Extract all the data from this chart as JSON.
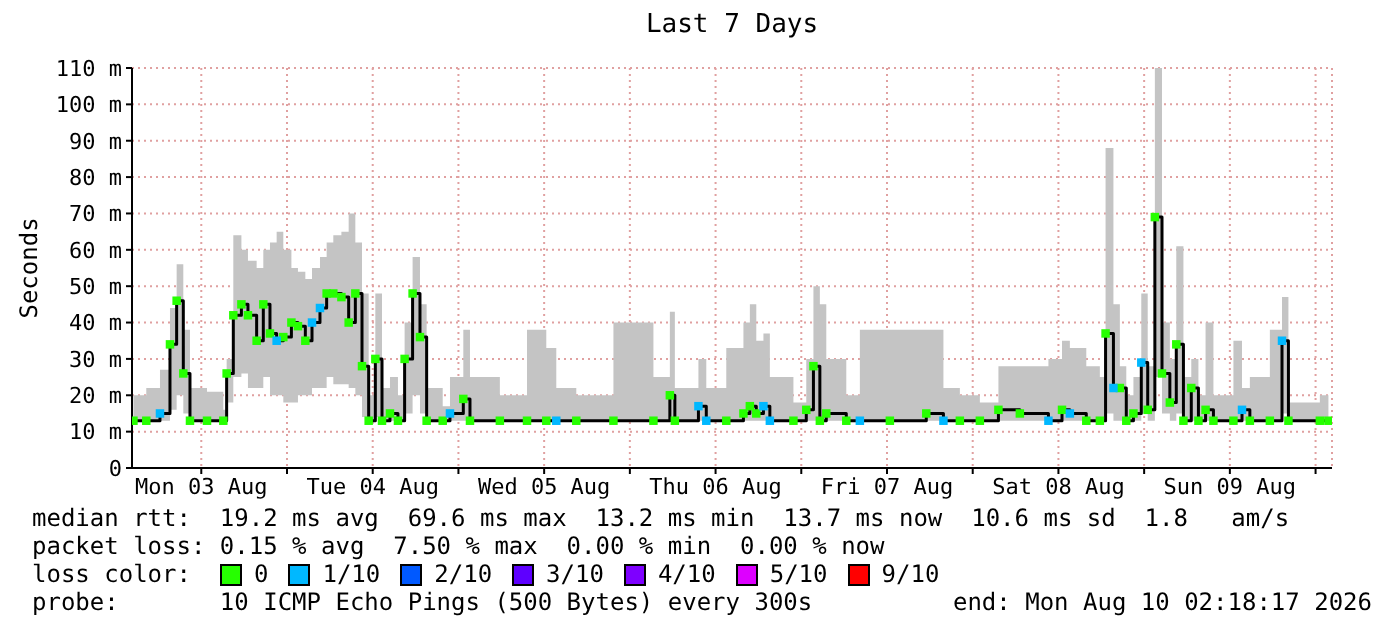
{
  "chart_data": {
    "type": "step",
    "title": "Last 7 Days",
    "ylabel": "Seconds",
    "legend_title": "loss color:",
    "legend": "bottom",
    "grid": true,
    "xlim": [
      "2026-08-03T02:18",
      "2026-08-10T02:18"
    ],
    "xticks": [
      {
        "value": "2026-08-03T12:00",
        "label": "Mon 03 Aug"
      },
      {
        "value": "2026-08-04",
        "label": null
      },
      {
        "value": "2026-08-04T12:00",
        "label": "Tue 04 Aug"
      },
      {
        "value": "2026-08-05",
        "label": null
      },
      {
        "value": "2026-08-05T12:00",
        "label": "Wed 05 Aug"
      },
      {
        "value": "2026-08-06",
        "label": null
      },
      {
        "value": "2026-08-06T12:00",
        "label": "Thu 06 Aug"
      },
      {
        "value": "2026-08-07",
        "label": null
      },
      {
        "value": "2026-08-07T12:00",
        "label": "Fri 07 Aug"
      },
      {
        "value": "2026-08-08",
        "label": null
      },
      {
        "value": "2026-08-08T12:00",
        "label": "Sat 08 Aug"
      },
      {
        "value": "2026-08-09",
        "label": null
      },
      {
        "value": "2026-08-09T12:00",
        "label": "Sun 09 Aug"
      },
      {
        "value": "2026-08-10",
        "label": null
      }
    ],
    "ylim": [
      0,
      110
    ],
    "yticks": [
      0,
      {
        "value": 10,
        "label": "10 m"
      },
      {
        "value": 20,
        "label": "20 m"
      },
      {
        "value": 30,
        "label": "30 m"
      },
      {
        "value": 40,
        "label": "40 m"
      },
      {
        "value": 50,
        "label": "50 m"
      },
      {
        "value": 60,
        "label": "60 m"
      },
      {
        "value": 70,
        "label": "70 m"
      },
      {
        "value": 80,
        "label": "80 m"
      },
      {
        "value": 90,
        "label": "90 m"
      },
      {
        "value": 100,
        "label": "100 m"
      },
      {
        "value": 110,
        "label": "110 m"
      }
    ],
    "x": [
      "2026-08-03T02:30",
      "2026-08-03T04:18",
      "2026-08-03T06:13",
      "2026-08-03T07:37",
      "2026-08-03T08:33",
      "2026-08-03T09:29",
      "2026-08-03T10:25",
      "2026-08-03T12:48",
      "2026-08-03T15:05",
      "2026-08-03T15:33",
      "2026-08-03T16:29",
      "2026-08-03T17:37",
      "2026-08-03T18:32",
      "2026-08-03T19:45",
      "2026-08-03T20:41",
      "2026-08-03T21:37",
      "2026-08-03T22:33",
      "2026-08-03T23:29",
      "2026-08-04T00:37",
      "2026-08-04T01:32",
      "2026-08-04T02:34",
      "2026-08-04T03:30",
      "2026-08-04T04:37",
      "2026-08-04T05:33",
      "2026-08-04T06:29",
      "2026-08-04T07:37",
      "2026-08-04T08:38",
      "2026-08-04T09:34",
      "2026-08-04T10:30",
      "2026-08-04T11:26",
      "2026-08-04T12:22",
      "2026-08-04T13:18",
      "2026-08-04T14:25",
      "2026-08-04T15:32",
      "2026-08-04T16:28",
      "2026-08-04T17:35",
      "2026-08-04T18:37",
      "2026-08-04T19:33",
      "2026-08-04T21:48",
      "2026-08-04T22:49",
      "2026-08-05T00:41",
      "2026-08-05T01:37",
      "2026-08-05T05:48",
      "2026-08-05T09:36",
      "2026-08-05T12:18",
      "2026-08-05T13:42",
      "2026-08-05T16:30",
      "2026-08-05T21:42",
      "2026-08-06T03:18",
      "2026-08-06T05:36",
      "2026-08-06T06:18",
      "2026-08-06T09:36",
      "2026-08-06T10:42",
      "2026-08-06T13:30",
      "2026-08-06T15:54",
      "2026-08-06T16:48",
      "2026-08-06T17:42",
      "2026-08-06T18:42",
      "2026-08-06T19:36",
      "2026-08-06T22:54",
      "2026-08-07T00:42",
      "2026-08-07T01:42",
      "2026-08-07T02:36",
      "2026-08-07T03:30",
      "2026-08-07T06:18",
      "2026-08-07T08:12",
      "2026-08-07T12:24",
      "2026-08-07T17:30",
      "2026-08-07T19:54",
      "2026-08-07T22:12",
      "2026-08-08T01:00",
      "2026-08-08T03:36",
      "2026-08-08T06:36",
      "2026-08-08T10:36",
      "2026-08-08T12:30",
      "2026-08-08T13:36",
      "2026-08-08T15:54",
      "2026-08-08T17:48",
      "2026-08-08T18:36",
      "2026-08-08T19:42",
      "2026-08-08T20:36",
      "2026-08-08T21:30",
      "2026-08-08T22:30",
      "2026-08-08T23:36",
      "2026-08-09T00:30",
      "2026-08-09T01:30",
      "2026-08-09T02:30",
      "2026-08-09T03:36",
      "2026-08-09T04:30",
      "2026-08-09T05:30",
      "2026-08-09T06:36",
      "2026-08-09T07:36",
      "2026-08-09T08:36",
      "2026-08-09T09:42",
      "2026-08-09T12:30",
      "2026-08-09T13:42",
      "2026-08-09T14:48",
      "2026-08-09T17:36",
      "2026-08-09T19:18",
      "2026-08-09T20:12",
      "2026-08-10T00:36",
      "2026-08-10T01:48"
    ],
    "series": [
      {
        "color": "#000000",
        "values": [
          13,
          13,
          15,
          34,
          46,
          26,
          13,
          13,
          13,
          26,
          42,
          45,
          42,
          35,
          45,
          37,
          35,
          36,
          40,
          39,
          35,
          40,
          44,
          48,
          48,
          47,
          40,
          48,
          28,
          13,
          30,
          13,
          15,
          13,
          30,
          48,
          36,
          13,
          13,
          15,
          19,
          13,
          13,
          13,
          13,
          13,
          13,
          13,
          13,
          20,
          13,
          17,
          13,
          13,
          15,
          17,
          15,
          17,
          13,
          13,
          16,
          28,
          13,
          15,
          13,
          13,
          13,
          15,
          13,
          13,
          13,
          16,
          15,
          13,
          16,
          15,
          13,
          13,
          37,
          22,
          22,
          13,
          15,
          29,
          16,
          69,
          26,
          18,
          34,
          13,
          22,
          13,
          16,
          13,
          13,
          16,
          13,
          13,
          35,
          13,
          13,
          13
        ],
        "lower": [
          13,
          13,
          13,
          16,
          20,
          15,
          13,
          13,
          13,
          18,
          25,
          26,
          22,
          22,
          25,
          20,
          20,
          18,
          18,
          20,
          20,
          22,
          22,
          25,
          23,
          23,
          22,
          20,
          14,
          13,
          14,
          13,
          13,
          13,
          15,
          20,
          15,
          13,
          13,
          13,
          13,
          13,
          13,
          13,
          13,
          13,
          13,
          13,
          13,
          13,
          13,
          13,
          13,
          13,
          13,
          13,
          13,
          13,
          13,
          13,
          13,
          13,
          13,
          13,
          13,
          13,
          13,
          13,
          13,
          13,
          13,
          13,
          13,
          13,
          13,
          13,
          13,
          13,
          15,
          13,
          13,
          13,
          13,
          15,
          13,
          25,
          15,
          13,
          15,
          13,
          13,
          13,
          13,
          13,
          13,
          13,
          13,
          13,
          15,
          13,
          13,
          13
        ],
        "upper": [
          20,
          22,
          27,
          44,
          56,
          38,
          22,
          21,
          16,
          30,
          64,
          60,
          57,
          55,
          60,
          62,
          65,
          60,
          55,
          54,
          52,
          55,
          58,
          62,
          64,
          65,
          70,
          62,
          48,
          20,
          48,
          22,
          25,
          20,
          40,
          58,
          45,
          22,
          17,
          25,
          38,
          25,
          20,
          38,
          33,
          22,
          20,
          40,
          25,
          43,
          22,
          30,
          22,
          33,
          40,
          45,
          35,
          37,
          25,
          18,
          30,
          50,
          45,
          30,
          20,
          38,
          38,
          38,
          22,
          20,
          18,
          28,
          28,
          30,
          35,
          33,
          28,
          25,
          88,
          45,
          28,
          20,
          25,
          48,
          28,
          110,
          40,
          30,
          61,
          25,
          30,
          20,
          40,
          20,
          35,
          22,
          25,
          38,
          47,
          18,
          20,
          16
        ]
      },
      {
        "type": "scatter",
        "marker": "square",
        "name": "0",
        "color": "#26ff00",
        "values": [
          13,
          13,
          null,
          34,
          46,
          26,
          13,
          13,
          13,
          26,
          42,
          45,
          42,
          35,
          45,
          37,
          null,
          36,
          40,
          39,
          35,
          null,
          null,
          48,
          48,
          47,
          40,
          48,
          28,
          13,
          30,
          13,
          15,
          13,
          30,
          48,
          36,
          13,
          13,
          null,
          19,
          13,
          13,
          13,
          13,
          null,
          13,
          13,
          13,
          20,
          13,
          null,
          null,
          13,
          15,
          17,
          15,
          null,
          null,
          13,
          16,
          28,
          13,
          15,
          13,
          null,
          13,
          15,
          null,
          13,
          13,
          16,
          15,
          null,
          16,
          null,
          13,
          13,
          37,
          null,
          22,
          13,
          15,
          null,
          16,
          69,
          26,
          18,
          34,
          13,
          22,
          13,
          16,
          13,
          13,
          null,
          13,
          13,
          null,
          13,
          13,
          13
        ]
      },
      {
        "type": "scatter",
        "marker": "square",
        "name": "1/10",
        "color": "#00b8ff",
        "values": [
          null,
          null,
          15,
          null,
          null,
          null,
          null,
          null,
          null,
          null,
          null,
          null,
          null,
          null,
          null,
          null,
          35,
          null,
          null,
          null,
          null,
          40,
          44,
          null,
          null,
          null,
          null,
          null,
          null,
          null,
          null,
          null,
          null,
          null,
          null,
          null,
          null,
          null,
          null,
          15,
          null,
          null,
          null,
          null,
          null,
          13,
          null,
          null,
          null,
          null,
          null,
          17,
          13,
          null,
          null,
          null,
          null,
          17,
          13,
          null,
          null,
          null,
          null,
          null,
          null,
          13,
          null,
          null,
          13,
          null,
          null,
          null,
          null,
          13,
          null,
          15,
          null,
          null,
          null,
          22,
          null,
          null,
          null,
          29,
          null,
          null,
          null,
          null,
          null,
          null,
          null,
          null,
          null,
          null,
          null,
          16,
          null,
          null,
          35,
          null,
          null,
          null
        ]
      },
      {
        "type": "scatter",
        "marker": "square",
        "name": "2/10",
        "color": "#0059ff",
        "values": [
          null,
          null,
          null,
          null,
          null,
          null,
          null,
          null,
          null,
          null,
          null,
          null,
          null,
          null,
          null,
          null,
          null,
          null,
          null,
          null,
          null,
          null,
          null,
          null,
          null,
          null,
          null,
          null,
          null,
          null,
          null,
          null,
          null,
          null,
          null,
          null,
          null,
          null,
          null,
          null,
          null,
          null,
          null,
          null,
          null,
          null,
          null,
          null,
          null,
          null,
          null,
          null,
          null,
          null,
          null,
          null,
          null,
          null,
          null,
          null,
          null,
          null,
          null,
          null,
          null,
          null,
          null,
          null,
          null,
          null,
          null,
          null,
          null,
          null,
          null,
          null,
          null,
          null,
          null,
          null,
          null,
          null,
          null,
          null,
          null,
          null,
          null,
          null,
          null,
          null,
          null,
          null,
          null,
          null,
          null,
          null,
          null,
          null,
          null,
          null,
          null,
          null
        ]
      },
      {
        "type": "scatter",
        "marker": "square",
        "name": "3/10",
        "color": "#5e00ff",
        "values": [
          null,
          null,
          null,
          null,
          null,
          null,
          null,
          null,
          null,
          null,
          null,
          null,
          null,
          null,
          null,
          null,
          null,
          null,
          null,
          null,
          null,
          null,
          null,
          null,
          null,
          null,
          null,
          null,
          null,
          null,
          null,
          null,
          null,
          null,
          null,
          null,
          null,
          null,
          null,
          null,
          null,
          null,
          null,
          null,
          null,
          null,
          null,
          null,
          null,
          null,
          null,
          null,
          null,
          null,
          null,
          null,
          null,
          null,
          null,
          null,
          null,
          null,
          null,
          null,
          null,
          null,
          null,
          null,
          null,
          null,
          null,
          null,
          null,
          null,
          null,
          null,
          null,
          null,
          null,
          null,
          null,
          null,
          null,
          null,
          null,
          null,
          null,
          null,
          null,
          null,
          null,
          null,
          null,
          null,
          null,
          null,
          null,
          null,
          null,
          null,
          null,
          null
        ]
      },
      {
        "type": "scatter",
        "marker": "square",
        "name": "4/10",
        "color": "#7e00ff",
        "values": [
          null,
          null,
          null,
          null,
          null,
          null,
          null,
          null,
          null,
          null,
          null,
          null,
          null,
          null,
          null,
          null,
          null,
          null,
          null,
          null,
          null,
          null,
          null,
          null,
          null,
          null,
          null,
          null,
          null,
          null,
          null,
          null,
          null,
          null,
          null,
          null,
          null,
          null,
          null,
          null,
          null,
          null,
          null,
          null,
          null,
          null,
          null,
          null,
          null,
          null,
          null,
          null,
          null,
          null,
          null,
          null,
          null,
          null,
          null,
          null,
          null,
          null,
          null,
          null,
          null,
          null,
          null,
          null,
          null,
          null,
          null,
          null,
          null,
          null,
          null,
          null,
          null,
          null,
          null,
          null,
          null,
          null,
          null,
          null,
          null,
          null,
          null,
          null,
          null,
          null,
          null,
          null,
          null,
          null,
          null,
          null,
          null,
          null,
          null,
          null,
          null,
          null
        ]
      },
      {
        "type": "scatter",
        "marker": "square",
        "name": "5/10",
        "color": "#dd00ff",
        "values": [
          null,
          null,
          null,
          null,
          null,
          null,
          null,
          null,
          null,
          null,
          null,
          null,
          null,
          null,
          null,
          null,
          null,
          null,
          null,
          null,
          null,
          null,
          null,
          null,
          null,
          null,
          null,
          null,
          null,
          null,
          null,
          null,
          null,
          null,
          null,
          null,
          null,
          null,
          null,
          null,
          null,
          null,
          null,
          null,
          null,
          null,
          null,
          null,
          null,
          null,
          null,
          null,
          null,
          null,
          null,
          null,
          null,
          null,
          null,
          null,
          null,
          null,
          null,
          null,
          null,
          null,
          null,
          null,
          null,
          null,
          null,
          null,
          null,
          null,
          null,
          null,
          null,
          null,
          null,
          null,
          null,
          null,
          null,
          null,
          null,
          null,
          null,
          null,
          null,
          null,
          null,
          null,
          null,
          null,
          null,
          null,
          null,
          null,
          null,
          null,
          null,
          null
        ]
      },
      {
        "type": "scatter",
        "marker": "square",
        "name": "9/10",
        "color": "#ff0000",
        "values": [
          null,
          null,
          null,
          null,
          null,
          null,
          null,
          null,
          null,
          null,
          null,
          null,
          null,
          null,
          null,
          null,
          null,
          null,
          null,
          null,
          null,
          null,
          null,
          null,
          null,
          null,
          null,
          null,
          null,
          null,
          null,
          null,
          null,
          null,
          null,
          null,
          null,
          null,
          null,
          null,
          null,
          null,
          null,
          null,
          null,
          null,
          null,
          null,
          null,
          null,
          null,
          null,
          null,
          null,
          null,
          null,
          null,
          null,
          null,
          null,
          null,
          null,
          null,
          null,
          null,
          null,
          null,
          null,
          null,
          null,
          null,
          null,
          null,
          null,
          null,
          null,
          null,
          null,
          null,
          null,
          null,
          null,
          null,
          null,
          null,
          null,
          null,
          null,
          null,
          null,
          null,
          null,
          null,
          null,
          null,
          null,
          null,
          null,
          null,
          null,
          null,
          null
        ]
      }
    ],
    "annotations": [
      "median rtt:  19.2 ms avg  69.6 ms max  13.2 ms min  13.7 ms now  10.6 ms sd  1.8   am/s",
      "packet loss: 0.15 % avg  7.50 % max  0.00 % min  0.00 % now",
      "probe:       10 ICMP Echo Pings (500 Bytes) every 300s",
      "end: Mon Aug 10 02:18:17 2026"
    ]
  }
}
